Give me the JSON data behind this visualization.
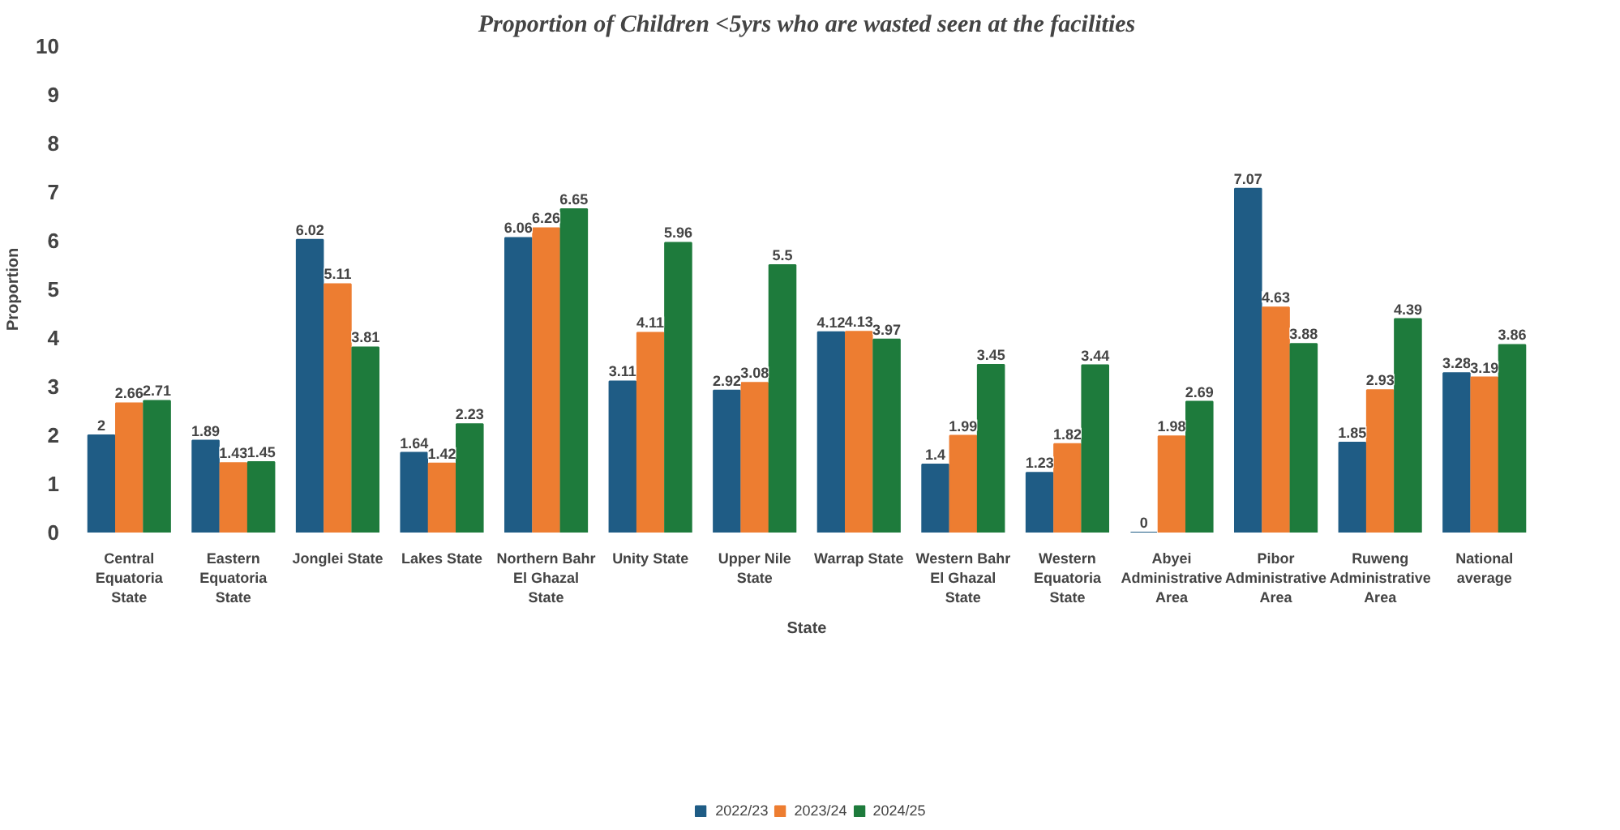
{
  "chart_data": {
    "type": "bar",
    "title": "Proportion of Children <5yrs who are wasted seen at the facilities",
    "xlabel": "State",
    "ylabel": "Proportion",
    "categories": [
      "Central Equatoria State",
      "Eastern Equatoria State",
      "Jonglei State",
      "Lakes State",
      "Northern Bahr El Ghazal State",
      "Unity State",
      "Upper Nile State",
      "Warrap State",
      "Western Bahr El Ghazal State",
      "Western Equatoria State",
      "Abyei Administrative Area",
      "Pibor Administrative Area",
      "Ruweng Administrative Area",
      "National average"
    ],
    "series": [
      {
        "name": "2022/23",
        "color": "#1f5c85",
        "values": [
          2,
          1.89,
          6.02,
          1.64,
          6.06,
          3.11,
          2.92,
          4.12,
          1.4,
          1.23,
          0,
          7.07,
          1.85,
          3.28
        ]
      },
      {
        "name": "2023/24",
        "color": "#ed7d31",
        "values": [
          2.66,
          1.43,
          5.11,
          1.42,
          6.26,
          4.11,
          3.08,
          4.13,
          1.99,
          1.82,
          1.98,
          4.63,
          2.93,
          3.19
        ]
      },
      {
        "name": "2024/25",
        "color": "#1e7b3c",
        "values": [
          2.71,
          1.45,
          3.81,
          2.23,
          6.65,
          5.96,
          5.5,
          3.97,
          3.45,
          3.44,
          2.69,
          3.88,
          4.39,
          3.86
        ]
      }
    ],
    "ylim": [
      0,
      10
    ],
    "yticks": [
      0,
      1,
      2,
      3,
      4,
      5,
      6,
      7,
      8,
      9,
      10
    ],
    "grid": false,
    "legend": "bottom",
    "data_labels": true
  }
}
